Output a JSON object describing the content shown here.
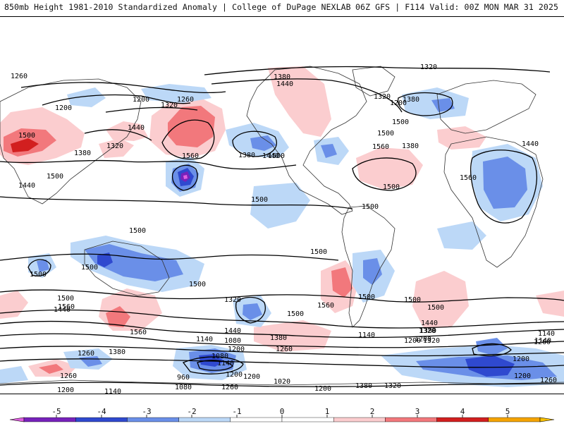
{
  "header": {
    "left_title": "850mb Height 1981-2010 Standardized Anomaly | College of DuPage NEXLAB",
    "right_title": "06Z GFS | F114 Valid: 00Z MON MAR 31 2025"
  },
  "colors": {
    "pos1": "#fbcdcf",
    "pos2": "#f2787c",
    "pos3": "#d21f1f",
    "neg1": "#bcd8f7",
    "neg2": "#6a8fe8",
    "neg3": "#2f49cf",
    "neg4": "#7722bb",
    "neg5": "#e060e0",
    "pos4": "#f5a400",
    "pos5": "#f8c000"
  },
  "colorbar": {
    "ticks": [
      "-5",
      "-4",
      "-3",
      "-2",
      "-1",
      "0",
      "1",
      "2",
      "3",
      "4",
      "5"
    ],
    "segment_colors": [
      "#e060e0",
      "#7722bb",
      "#2f49cf",
      "#6a8fe8",
      "#bcd8f7",
      "#ffffff",
      "#ffffff",
      "#fbcdcf",
      "#f2787c",
      "#d21f1f",
      "#f5a400",
      "#f8c000"
    ]
  },
  "contour_labels": [
    "1320",
    "1380",
    "1440",
    "1260",
    "1200",
    "1320",
    "1260",
    "1200",
    "1320",
    "1200",
    "1380",
    "1440",
    "1320",
    "1500",
    "1380",
    "1560",
    "1440",
    "1500",
    "1560",
    "1380",
    "1500",
    "1440",
    "1500",
    "1380",
    "1500",
    "1440",
    "1560",
    "1500",
    "1500",
    "1500",
    "1500",
    "1500",
    "1500",
    "1500",
    "1500",
    "1500",
    "1500",
    "1560",
    "1500",
    "1500",
    "1440",
    "1560",
    "1440",
    "1320",
    "1380",
    "1500",
    "1320",
    "1440",
    "1320",
    "1380",
    "1260",
    "1560",
    "1380",
    "1260",
    "1140",
    "1200",
    "1260",
    "1200",
    "1140",
    "1080",
    "1200",
    "1080",
    "1140",
    "1200",
    "1140",
    "1200",
    "1020",
    "960",
    "1080",
    "1200",
    "1140",
    "1260",
    "1200",
    "1320",
    "1380",
    "1260",
    "1140",
    "1200",
    "1200",
    "1260"
  ]
}
